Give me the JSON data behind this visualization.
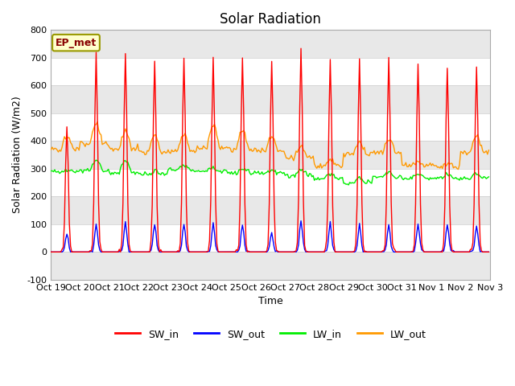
{
  "title": "Solar Radiation",
  "xlabel": "Time",
  "ylabel": "Solar Radiation (W/m2)",
  "ylim": [
    -100,
    800
  ],
  "yticks": [
    -100,
    0,
    100,
    200,
    300,
    400,
    500,
    600,
    700,
    800
  ],
  "date_labels": [
    "Oct 19",
    "Oct 20",
    "Oct 21",
    "Oct 22",
    "Oct 23",
    "Oct 24",
    "Oct 25",
    "Oct 26",
    "Oct 27",
    "Oct 28",
    "Oct 29",
    "Oct 30",
    "Oct 31",
    "Nov 1",
    "Nov 2",
    "Nov 3"
  ],
  "colors": {
    "SW_in": "#ff0000",
    "SW_out": "#0000ff",
    "LW_in": "#00ee00",
    "LW_out": "#ff9900"
  },
  "ep_met_label": "EP_met",
  "ep_met_bg": "#ffffcc",
  "ep_met_border": "#999900",
  "background_color": "#ffffff",
  "plot_bg_color": "#ffffff",
  "grid_color": "#cccccc",
  "alt_band_color": "#e8e8e8",
  "line_width": 1.0,
  "title_fontsize": 12,
  "axis_fontsize": 9,
  "tick_fontsize": 8,
  "num_days": 15,
  "SW_in_peaks": [
    450,
    710,
    715,
    690,
    695,
    700,
    700,
    695,
    735,
    695,
    695,
    700,
    680,
    670,
    670
  ],
  "SW_out_peaks": [
    70,
    100,
    105,
    100,
    100,
    100,
    100,
    70,
    115,
    105,
    100,
    100,
    100,
    100,
    95
  ],
  "LW_in_day": [
    295,
    330,
    330,
    290,
    310,
    305,
    300,
    295,
    295,
    285,
    265,
    285,
    280,
    280,
    280
  ],
  "LW_in_night": [
    290,
    295,
    285,
    280,
    295,
    290,
    285,
    285,
    275,
    265,
    250,
    270,
    265,
    265,
    265
  ],
  "LW_out_day": [
    415,
    460,
    430,
    420,
    420,
    455,
    440,
    420,
    380,
    330,
    395,
    405,
    320,
    315,
    415
  ],
  "LW_out_night": [
    370,
    390,
    370,
    360,
    365,
    375,
    370,
    365,
    340,
    310,
    350,
    360,
    310,
    310,
    360
  ]
}
